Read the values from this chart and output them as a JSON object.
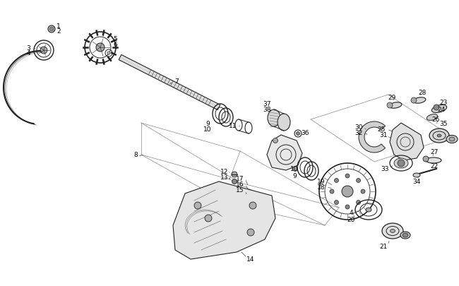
{
  "bg_color": "#ffffff",
  "fig_width": 6.5,
  "fig_height": 4.06,
  "dpi": 100,
  "line_color": "#222222",
  "line_width": 0.7,
  "font_size": 6.5
}
